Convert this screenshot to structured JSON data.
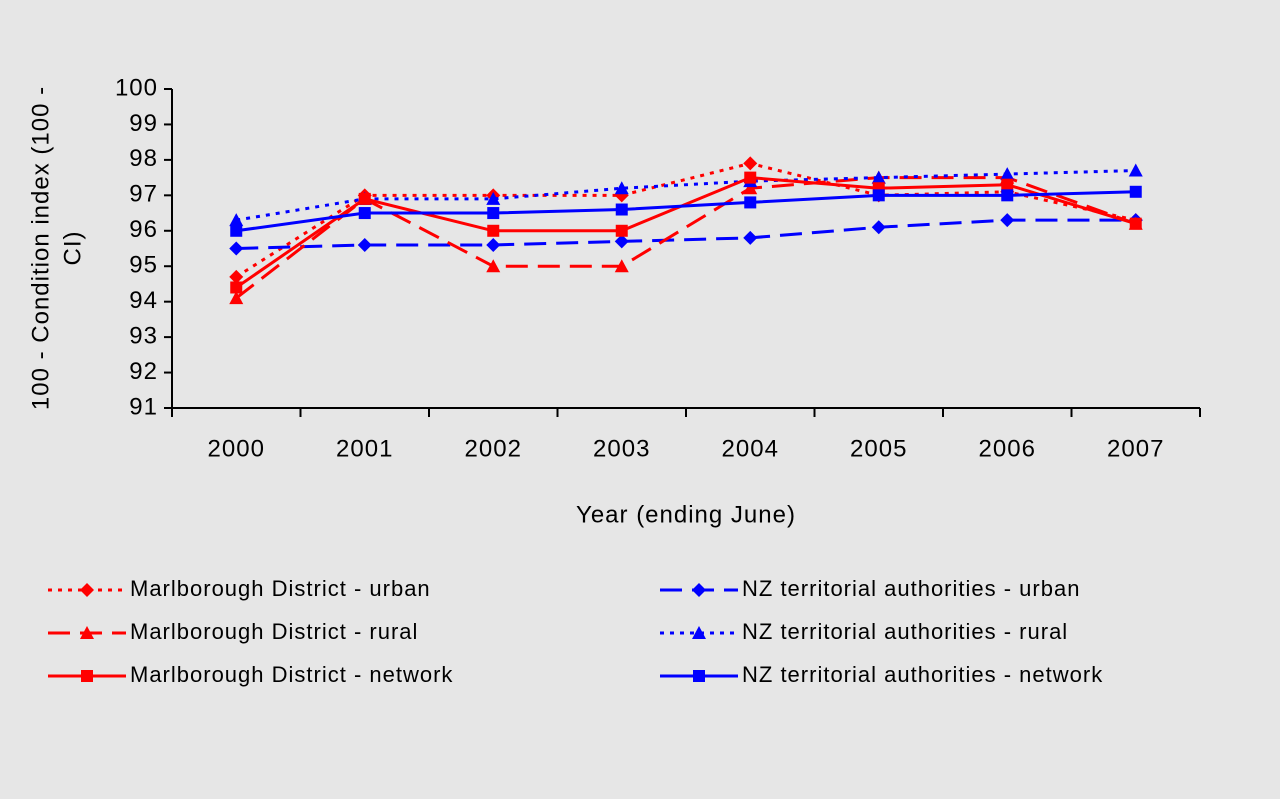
{
  "chart_data": {
    "type": "line",
    "y_label": [
      "100 - Condition index (100 -",
      "CI)"
    ],
    "x_label": "Year (ending June)",
    "categories": [
      "2000",
      "2001",
      "2002",
      "2003",
      "2004",
      "2005",
      "2006",
      "2007"
    ],
    "ylim": [
      91,
      100
    ],
    "yticks": [
      91,
      92,
      93,
      94,
      95,
      96,
      97,
      98,
      99,
      100
    ],
    "grid": false,
    "series": [
      {
        "name": "Marlborough District - urban",
        "color": "#ff0000",
        "dash": "dotted",
        "marker": "diamond",
        "values": [
          94.7,
          97.0,
          97.0,
          97.0,
          97.9,
          97.0,
          97.1,
          96.3
        ]
      },
      {
        "name": "NZ territorial authorities - urban",
        "color": "#0000ff",
        "dash": "dashed",
        "marker": "diamond",
        "values": [
          95.5,
          95.6,
          95.6,
          95.7,
          95.8,
          96.1,
          96.3,
          96.3
        ]
      },
      {
        "name": "Marlborough District - rural",
        "color": "#ff0000",
        "dash": "dashed",
        "marker": "triangle",
        "values": [
          94.1,
          96.9,
          95.0,
          95.0,
          97.2,
          97.5,
          97.5,
          96.2
        ]
      },
      {
        "name": "NZ territorial authorities - rural",
        "color": "#0000ff",
        "dash": "dotted",
        "marker": "triangle",
        "values": [
          96.3,
          96.9,
          96.9,
          97.2,
          97.4,
          97.5,
          97.6,
          97.7
        ]
      },
      {
        "name": "Marlborough District - network",
        "color": "#ff0000",
        "dash": "solid",
        "marker": "square",
        "values": [
          94.4,
          96.9,
          96.0,
          96.0,
          97.5,
          97.2,
          97.3,
          96.2
        ]
      },
      {
        "name": "NZ territorial authorities - network",
        "color": "#0000ff",
        "dash": "solid",
        "marker": "square",
        "values": [
          96.0,
          96.5,
          96.5,
          96.6,
          96.8,
          97.0,
          97.0,
          97.1
        ]
      }
    ]
  }
}
